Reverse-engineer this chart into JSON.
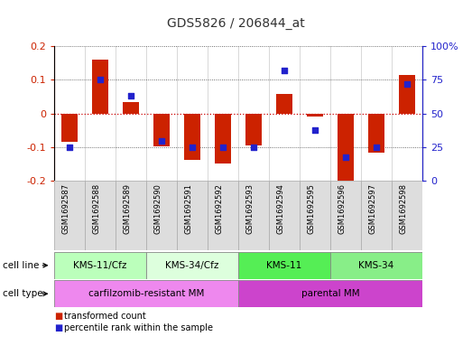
{
  "title": "GDS5826 / 206844_at",
  "samples": [
    "GSM1692587",
    "GSM1692588",
    "GSM1692589",
    "GSM1692590",
    "GSM1692591",
    "GSM1692592",
    "GSM1692593",
    "GSM1692594",
    "GSM1692595",
    "GSM1692596",
    "GSM1692597",
    "GSM1692598"
  ],
  "transformed_count": [
    -0.085,
    0.16,
    0.033,
    -0.097,
    -0.138,
    -0.148,
    -0.095,
    0.058,
    -0.01,
    -0.2,
    -0.115,
    0.115
  ],
  "percentile_rank": [
    25,
    75,
    63,
    30,
    25,
    25,
    25,
    82,
    38,
    18,
    25,
    72
  ],
  "cell_line_groups": [
    {
      "label": "KMS-11/Cfz",
      "start": 0,
      "end": 3,
      "color": "#bbffbb"
    },
    {
      "label": "KMS-34/Cfz",
      "start": 3,
      "end": 6,
      "color": "#ddffdd"
    },
    {
      "label": "KMS-11",
      "start": 6,
      "end": 9,
      "color": "#55ee55"
    },
    {
      "label": "KMS-34",
      "start": 9,
      "end": 12,
      "color": "#88ee88"
    }
  ],
  "cell_type_groups": [
    {
      "label": "carfilzomib-resistant MM",
      "start": 0,
      "end": 6,
      "color": "#ee88ee"
    },
    {
      "label": "parental MM",
      "start": 6,
      "end": 12,
      "color": "#cc44cc"
    }
  ],
  "bar_color": "#cc2200",
  "dot_color": "#2222cc",
  "ylim_left": [
    -0.2,
    0.2
  ],
  "ylim_right": [
    0,
    100
  ],
  "yticks_left": [
    -0.2,
    -0.1,
    0.0,
    0.1,
    0.2
  ],
  "yticks_right": [
    0,
    25,
    50,
    75,
    100
  ],
  "background_color": "#ffffff",
  "legend_items": [
    {
      "label": "transformed count",
      "color": "#cc2200"
    },
    {
      "label": "percentile rank within the sample",
      "color": "#2222cc"
    }
  ]
}
